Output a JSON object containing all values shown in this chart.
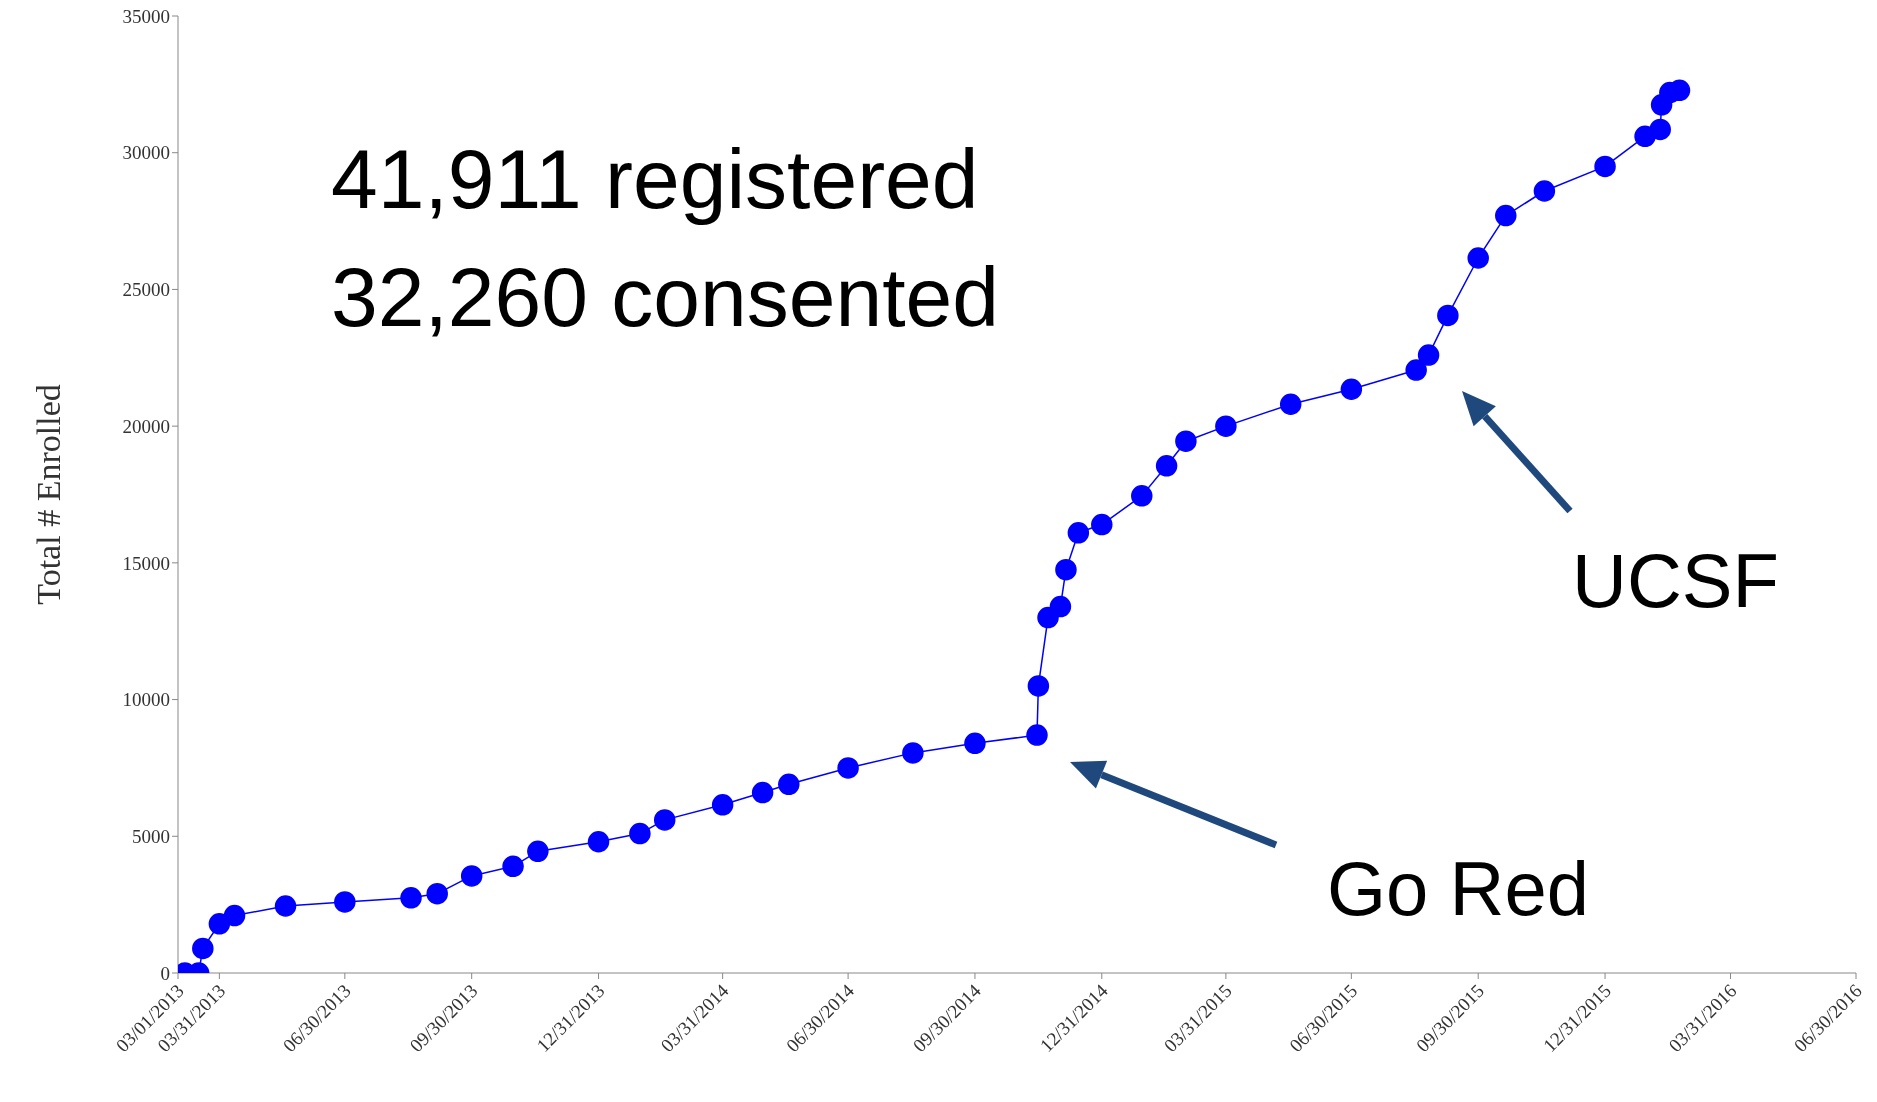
{
  "chart_data": {
    "type": "line",
    "ylabel": "Total # Enrolled",
    "marker": "circle",
    "line_style": "solid",
    "grid": false,
    "legend": false,
    "x": [
      "2013-03-06",
      "2013-03-16",
      "2013-03-19",
      "2013-03-31",
      "2013-04-11",
      "2013-05-18",
      "2013-06-30",
      "2013-08-17",
      "2013-09-05",
      "2013-09-30",
      "2013-10-30",
      "2013-11-17",
      "2013-12-31",
      "2014-01-30",
      "2014-02-17",
      "2014-03-31",
      "2014-04-29",
      "2014-05-18",
      "2014-06-30",
      "2014-08-16",
      "2014-09-30",
      "2014-11-14",
      "2014-11-15",
      "2014-11-22",
      "2014-12-01",
      "2014-12-05",
      "2014-12-14",
      "2014-12-31",
      "2015-01-29",
      "2015-02-16",
      "2015-03-02",
      "2015-03-31",
      "2015-05-17",
      "2015-06-30",
      "2015-08-16",
      "2015-08-25",
      "2015-09-08",
      "2015-09-30",
      "2015-10-20",
      "2015-11-17",
      "2015-12-31",
      "2016-01-29",
      "2016-02-09",
      "2016-02-10",
      "2016-02-16",
      "2016-02-23"
    ],
    "series": [
      {
        "color": "#0000ff",
        "values": [
          0,
          0,
          900,
          1800,
          2100,
          2450,
          2600,
          2750,
          2900,
          3550,
          3900,
          4450,
          4800,
          5100,
          5600,
          6150,
          6600,
          6900,
          7500,
          8050,
          8400,
          8700,
          10500,
          13000,
          13400,
          14750,
          16100,
          16400,
          17450,
          18550,
          19450,
          20000,
          20800,
          21350,
          22050,
          22600,
          24050,
          26150,
          27700,
          28600,
          29500,
          30600,
          30850,
          31750,
          32200,
          32280
        ]
      }
    ],
    "xlim": [
      "2013-03-01",
      "2016-06-30"
    ],
    "xticks": [
      {
        "value": "2013-03-01",
        "label": "03/01/2013"
      },
      {
        "value": "2013-03-31",
        "label": "03/31/2013"
      },
      {
        "value": "2013-06-30",
        "label": "06/30/2013"
      },
      {
        "value": "2013-09-30",
        "label": "09/30/2013"
      },
      {
        "value": "2013-12-31",
        "label": "12/31/2013"
      },
      {
        "value": "2014-03-31",
        "label": "03/31/2014"
      },
      {
        "value": "2014-06-30",
        "label": "06/30/2014"
      },
      {
        "value": "2014-09-30",
        "label": "09/30/2014"
      },
      {
        "value": "2014-12-31",
        "label": "12/31/2014"
      },
      {
        "value": "2015-03-31",
        "label": "03/31/2015"
      },
      {
        "value": "2015-06-30",
        "label": "06/30/2015"
      },
      {
        "value": "2015-09-30",
        "label": "09/30/2015"
      },
      {
        "value": "2015-12-31",
        "label": "12/31/2015"
      },
      {
        "value": "2016-03-31",
        "label": "03/31/2016"
      },
      {
        "value": "2016-06-30",
        "label": "06/30/2016"
      }
    ],
    "ylim": [
      0,
      35000
    ],
    "yticks": [
      0,
      5000,
      10000,
      15000,
      20000,
      25000,
      30000,
      35000
    ],
    "annotations": [
      "41,911 registered",
      "32,260 consented",
      "Go Red",
      "UCSF"
    ]
  }
}
